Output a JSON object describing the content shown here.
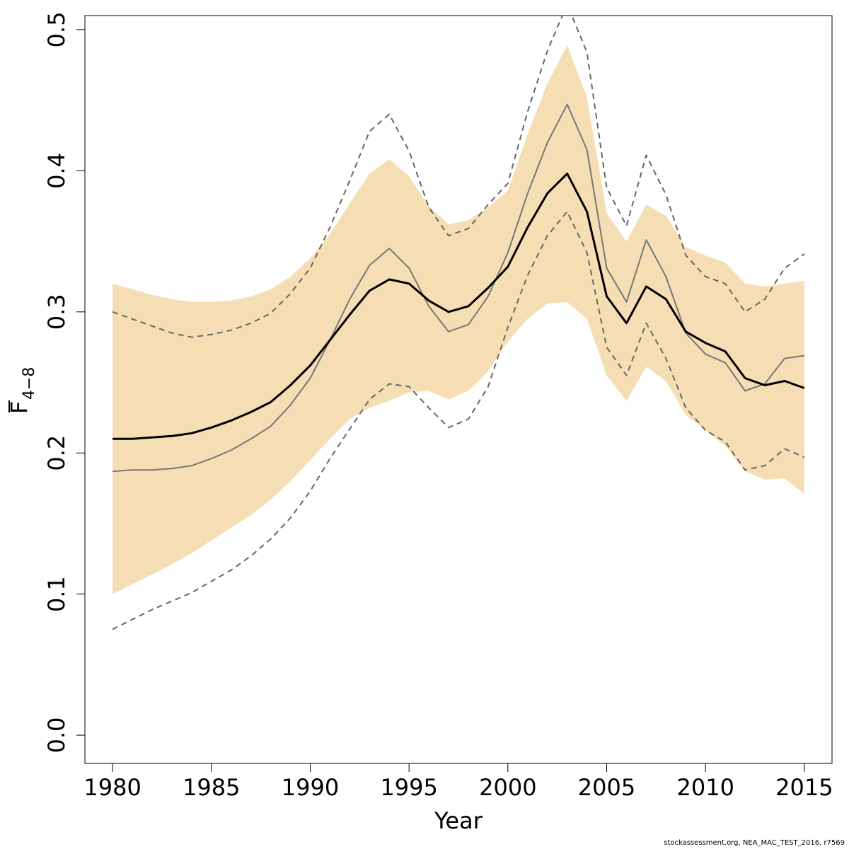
{
  "chart_data": {
    "type": "line",
    "title": "",
    "xlabel": "Year",
    "ylabel": {
      "main": "F",
      "sub": "4−8"
    },
    "xlim": [
      1978.6,
      2016.4
    ],
    "ylim": [
      -0.02,
      0.51
    ],
    "x_ticks": [
      1980,
      1985,
      1990,
      1995,
      2000,
      2005,
      2010,
      2015
    ],
    "x_tick_labels": [
      "1980",
      "1985",
      "1990",
      "1995",
      "2000",
      "2005",
      "2010",
      "2015"
    ],
    "y_ticks": [
      0.0,
      0.1,
      0.2,
      0.3,
      0.4,
      0.5
    ],
    "y_tick_labels": [
      "0.0",
      "0.1",
      "0.2",
      "0.3",
      "0.4",
      "0.5"
    ],
    "grid": false,
    "legend": "none",
    "x": [
      1980,
      1981,
      1982,
      1983,
      1984,
      1985,
      1986,
      1987,
      1988,
      1989,
      1990,
      1991,
      1992,
      1993,
      1994,
      1995,
      1996,
      1997,
      1998,
      1999,
      2000,
      2001,
      2002,
      2003,
      2004,
      2005,
      2006,
      2007,
      2008,
      2009,
      2010,
      2011,
      2012,
      2013,
      2014,
      2015
    ],
    "series": [
      {
        "style": "band",
        "color": "#f5deb3",
        "lower": [
          0.1,
          0.107,
          0.114,
          0.121,
          0.129,
          0.138,
          0.147,
          0.156,
          0.167,
          0.18,
          0.195,
          0.21,
          0.224,
          0.232,
          0.237,
          0.243,
          0.244,
          0.238,
          0.244,
          0.258,
          0.279,
          0.295,
          0.306,
          0.307,
          0.295,
          0.255,
          0.237,
          0.261,
          0.251,
          0.227,
          0.216,
          0.205,
          0.187,
          0.181,
          0.182,
          0.171
        ],
        "upper": [
          0.32,
          0.316,
          0.312,
          0.309,
          0.307,
          0.307,
          0.308,
          0.311,
          0.316,
          0.325,
          0.338,
          0.355,
          0.377,
          0.398,
          0.408,
          0.396,
          0.375,
          0.362,
          0.365,
          0.374,
          0.386,
          0.426,
          0.462,
          0.489,
          0.452,
          0.37,
          0.35,
          0.376,
          0.368,
          0.346,
          0.34,
          0.335,
          0.32,
          0.318,
          0.32,
          0.322
        ]
      },
      {
        "style": "dashed",
        "color": "#666666",
        "values": [
          0.075,
          0.082,
          0.089,
          0.095,
          0.101,
          0.109,
          0.117,
          0.127,
          0.139,
          0.154,
          0.173,
          0.196,
          0.217,
          0.238,
          0.249,
          0.247,
          0.232,
          0.218,
          0.224,
          0.247,
          0.289,
          0.326,
          0.354,
          0.371,
          0.342,
          0.275,
          0.255,
          0.292,
          0.267,
          0.232,
          0.216,
          0.208,
          0.188,
          0.191,
          0.203,
          0.197
        ]
      },
      {
        "style": "dashed",
        "color": "#666666",
        "values": [
          0.3,
          0.295,
          0.29,
          0.285,
          0.282,
          0.284,
          0.287,
          0.292,
          0.299,
          0.313,
          0.331,
          0.36,
          0.393,
          0.428,
          0.44,
          0.414,
          0.374,
          0.354,
          0.359,
          0.376,
          0.391,
          0.442,
          0.485,
          0.518,
          0.484,
          0.388,
          0.361,
          0.411,
          0.383,
          0.34,
          0.325,
          0.32,
          0.3,
          0.309,
          0.331,
          0.341
        ]
      },
      {
        "style": "solid",
        "color": "#777777",
        "width": 2,
        "values": [
          0.187,
          0.188,
          0.188,
          0.189,
          0.191,
          0.196,
          0.202,
          0.21,
          0.219,
          0.234,
          0.253,
          0.28,
          0.309,
          0.333,
          0.345,
          0.331,
          0.304,
          0.286,
          0.291,
          0.311,
          0.342,
          0.384,
          0.42,
          0.447,
          0.415,
          0.331,
          0.307,
          0.351,
          0.325,
          0.285,
          0.27,
          0.264,
          0.244,
          0.249,
          0.267,
          0.269
        ]
      },
      {
        "style": "solid",
        "color": "#000000",
        "width": 3,
        "values": [
          0.21,
          0.21,
          0.211,
          0.212,
          0.214,
          0.218,
          0.223,
          0.229,
          0.236,
          0.248,
          0.262,
          0.28,
          0.298,
          0.315,
          0.323,
          0.32,
          0.308,
          0.3,
          0.304,
          0.317,
          0.332,
          0.36,
          0.384,
          0.398,
          0.371,
          0.311,
          0.292,
          0.318,
          0.309,
          0.286,
          0.278,
          0.272,
          0.253,
          0.248,
          0.251,
          0.246
        ]
      }
    ]
  },
  "footer": "stockassessment.org, NEA_MAC_TEST_2016, r7569"
}
